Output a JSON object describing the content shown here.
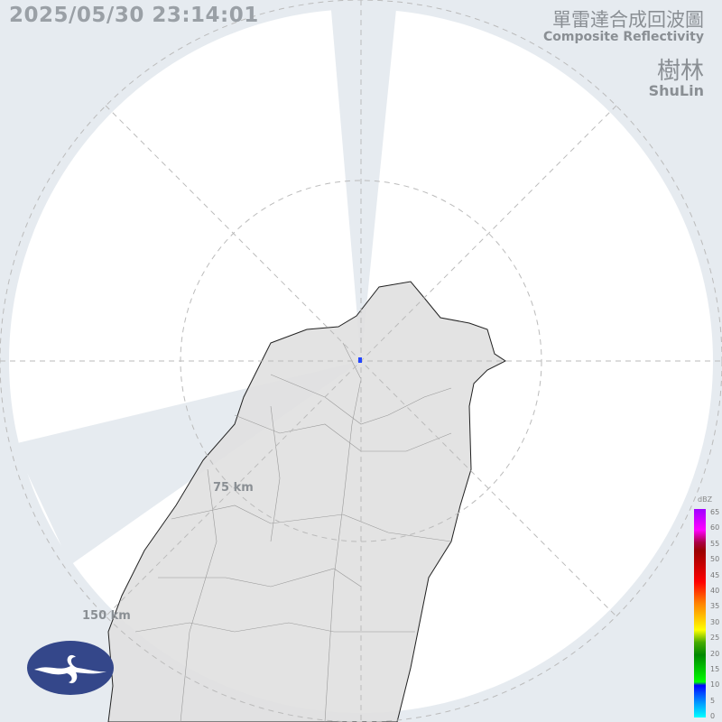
{
  "timestamp": "2025/05/30 23:14:01",
  "title_zh": "單雷達合成回波圖",
  "title_en": "Composite Reflectivity",
  "station_zh": "樹林",
  "station_en": "ShuLin",
  "range_rings": [
    "75 km",
    "150 km"
  ],
  "legend": {
    "unit": "dBZ",
    "ticks": [
      "65",
      "60",
      "55",
      "50",
      "45",
      "40",
      "35",
      "30",
      "25",
      "20",
      "15",
      "10",
      "5",
      "0"
    ]
  },
  "colors": {
    "background": "#e6ebf0",
    "coverage": "#ffffff",
    "land": "#e0e0e0",
    "logo": "#34478a"
  },
  "logo": "CWA"
}
